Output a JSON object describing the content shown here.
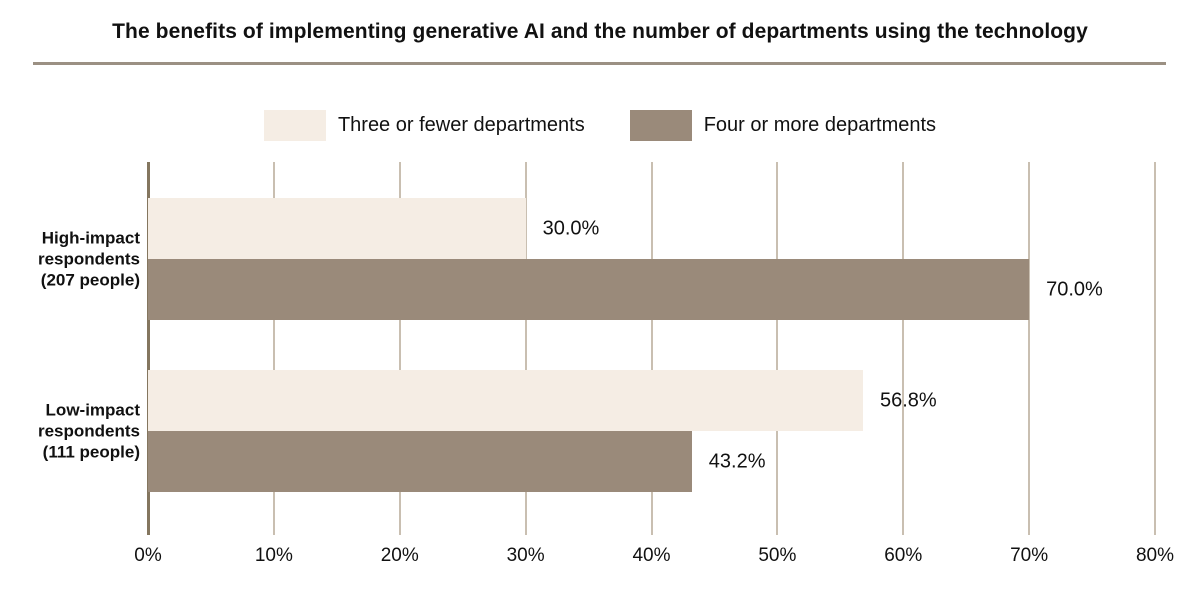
{
  "title": "The benefits of implementing generative AI and the number of departments using the technology",
  "legend": {
    "items": [
      {
        "label": "Three or fewer departments",
        "color": "#f5ede4"
      },
      {
        "label": "Four or more departments",
        "color": "#9a8a7a"
      }
    ]
  },
  "category_labels": [
    {
      "label": "High-impact\nrespondents\n(207 people)"
    },
    {
      "label": "Low-impact\nrespondents\n(111 people)"
    }
  ],
  "chart_data": {
    "type": "bar",
    "orientation": "horizontal",
    "title": "The benefits of implementing generative AI and the number of departments using the technology",
    "categories": [
      "High-impact respondents (207 people)",
      "Low-impact respondents (111 people)"
    ],
    "series": [
      {
        "name": "Three or fewer departments",
        "color": "#f5ede4",
        "values": [
          30.0,
          56.8
        ],
        "value_labels": [
          "30.0%",
          "56.8%"
        ]
      },
      {
        "name": "Four or more departments",
        "color": "#9a8a7a",
        "values": [
          70.0,
          43.2
        ],
        "value_labels": [
          "70.0%",
          "43.2%"
        ]
      }
    ],
    "xlim": [
      0,
      80
    ],
    "x_ticks": [
      "0%",
      "10%",
      "20%",
      "30%",
      "40%",
      "50%",
      "60%",
      "70%",
      "80%"
    ],
    "grid": true,
    "legend_position": "top"
  },
  "colors": {
    "grid_line": "#c9bfb1",
    "zero_line": "#84765f",
    "title_rule": "#9b9083"
  }
}
